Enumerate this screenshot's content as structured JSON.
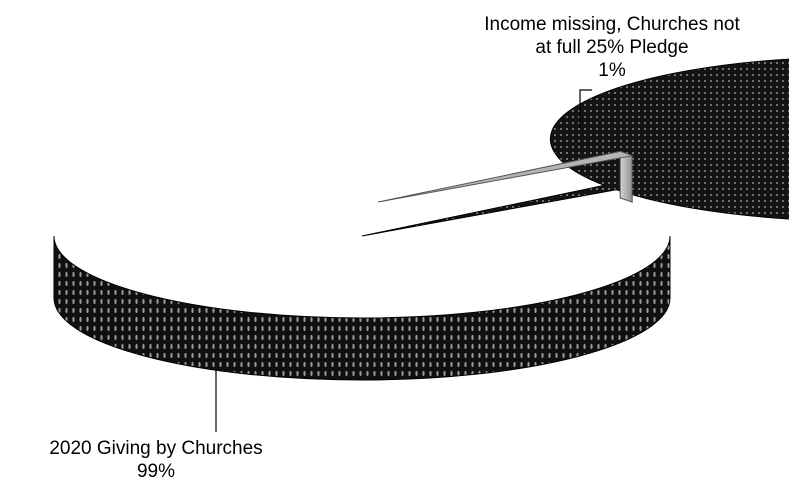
{
  "chart_data": {
    "type": "pie",
    "style": "3d-exploded",
    "colors": {
      "main_slice": "#141414",
      "main_texture": "#8c8c8c",
      "exploded_slice": "#b4b4b4",
      "leader_line": "#000000"
    },
    "slices": [
      {
        "label_lines": [
          "2020 Giving by Churches"
        ],
        "percent_label": "99%",
        "value": 99
      },
      {
        "label_lines": [
          "Income missing, Churches not",
          "at full 25% Pledge"
        ],
        "percent_label": "1%",
        "value": 1
      }
    ]
  }
}
